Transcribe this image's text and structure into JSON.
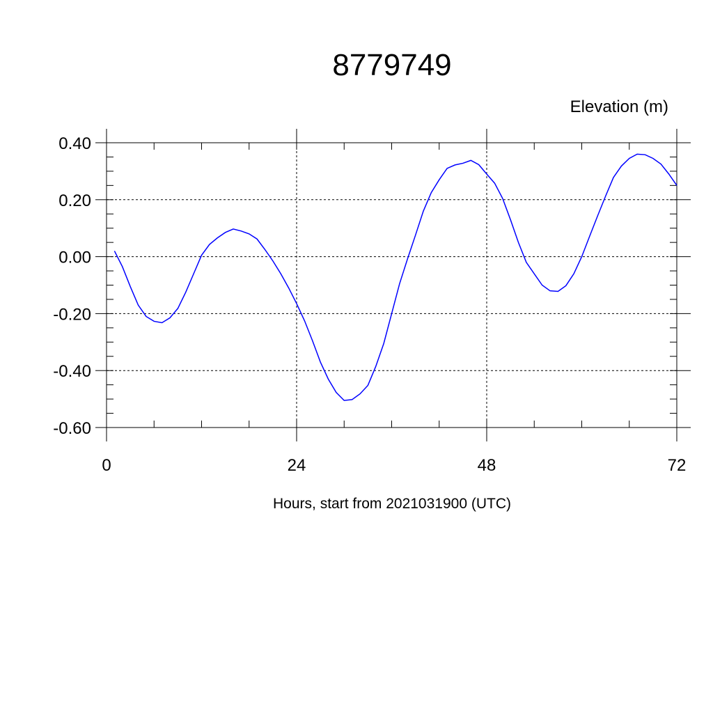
{
  "chart_data": {
    "type": "line",
    "title": "8779749",
    "unit_label": "Elevation (m)",
    "xlabel": "Hours, start from 2021031900 (UTC)",
    "ylabel": "",
    "xlim": [
      0,
      72
    ],
    "ylim": [
      -0.6,
      0.4
    ],
    "x_ticks": [
      0,
      24,
      48,
      72
    ],
    "x_tick_labels": [
      "0",
      "24",
      "48",
      "72"
    ],
    "y_ticks": [
      0.4,
      0.2,
      0.0,
      -0.2,
      -0.4,
      -0.6
    ],
    "y_tick_labels": [
      "0.40",
      "0.20",
      "0.00",
      "-0.20",
      "-0.40",
      "-0.60"
    ],
    "grid": true,
    "line_color": "#0000ff",
    "series": [
      {
        "x": [
          1,
          2,
          3,
          4,
          5,
          6,
          7,
          8,
          9,
          10,
          11,
          12,
          13,
          14,
          15,
          16,
          17,
          18,
          19,
          20,
          21,
          22,
          23,
          24,
          25,
          26,
          27,
          28,
          29,
          30,
          31,
          32,
          33,
          34,
          35,
          36,
          37,
          38,
          39,
          40,
          41,
          42,
          43,
          44,
          45,
          46,
          47,
          48,
          49,
          50,
          51,
          52,
          53,
          54,
          55,
          56,
          57,
          58,
          59,
          60,
          61,
          62,
          63,
          64,
          65,
          66,
          67,
          68,
          69,
          70,
          71,
          72
        ],
        "values": [
          0.02,
          -0.035,
          -0.105,
          -0.17,
          -0.21,
          -0.227,
          -0.232,
          -0.215,
          -0.182,
          -0.125,
          -0.06,
          0.005,
          0.043,
          0.066,
          0.085,
          0.097,
          0.09,
          0.08,
          0.062,
          0.025,
          -0.015,
          -0.06,
          -0.11,
          -0.165,
          -0.225,
          -0.295,
          -0.37,
          -0.43,
          -0.477,
          -0.505,
          -0.502,
          -0.482,
          -0.452,
          -0.385,
          -0.305,
          -0.2,
          -0.095,
          -0.008,
          0.075,
          0.16,
          0.225,
          0.27,
          0.31,
          0.322,
          0.328,
          0.338,
          0.323,
          0.29,
          0.258,
          0.205,
          0.13,
          0.05,
          -0.02,
          -0.06,
          -0.1,
          -0.12,
          -0.122,
          -0.102,
          -0.06,
          0.0,
          0.072,
          0.143,
          0.212,
          0.278,
          0.318,
          0.345,
          0.36,
          0.358,
          0.345,
          0.325,
          0.29,
          0.25
        ]
      }
    ]
  }
}
